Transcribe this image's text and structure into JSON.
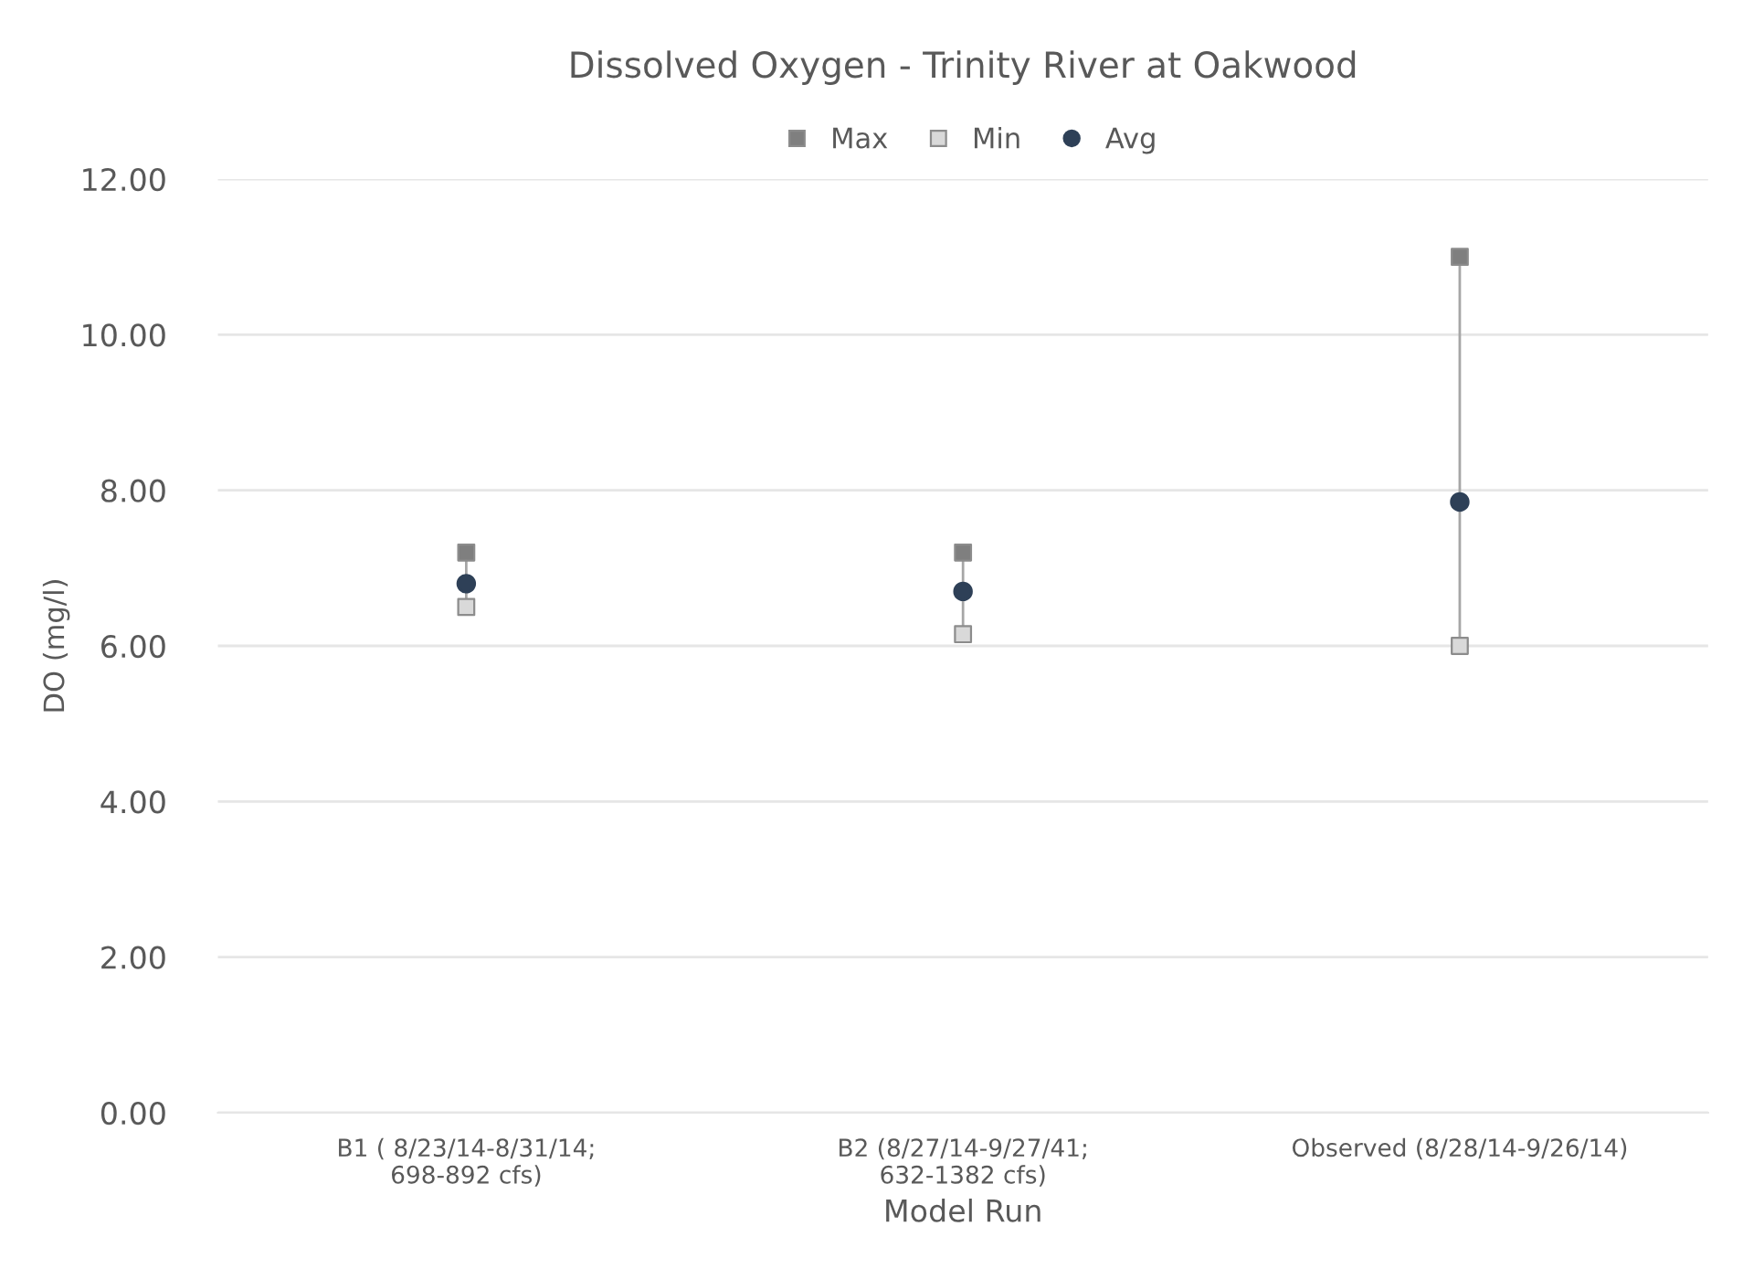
{
  "chart_data": {
    "type": "scatter",
    "title": "Dissolved Oxygen - Trinity River at Oakwood",
    "xlabel": "Model Run",
    "ylabel": "DO (mg/l)",
    "categories": [
      "B1 ( 8/23/14-8/31/14;\n698-892 cfs)",
      "B2 (8/27/14-9/27/41;\n632-1382 cfs)",
      "Observed (8/28/14-9/26/14)"
    ],
    "series": [
      {
        "name": "Max",
        "color": "#7f7f7f",
        "marker": "square",
        "values": [
          7.2,
          7.2,
          11.0
        ]
      },
      {
        "name": "Min",
        "color": "#d9d9d9",
        "marker": "square",
        "values": [
          6.5,
          6.15,
          6.0
        ]
      },
      {
        "name": "Avg",
        "color": "#2e4057",
        "marker": "circle",
        "values": [
          6.8,
          6.7,
          7.85
        ]
      }
    ],
    "ylim": [
      0,
      12
    ],
    "yticks": [
      {
        "value": 0,
        "label": "0.00"
      },
      {
        "value": 2,
        "label": "2.00"
      },
      {
        "value": 4,
        "label": "4.00"
      },
      {
        "value": 6,
        "label": "6.00"
      },
      {
        "value": 8,
        "label": "8.00"
      },
      {
        "value": 10,
        "label": "10.00"
      },
      {
        "value": 12,
        "label": "12.00"
      }
    ],
    "grid": "y",
    "legend": "top"
  }
}
